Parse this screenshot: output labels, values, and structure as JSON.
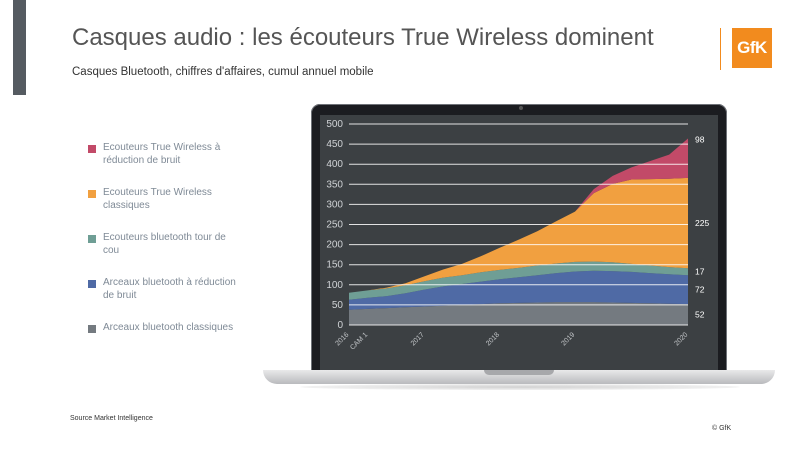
{
  "header": {
    "title": "Casques audio : les écouteurs True Wireless dominent",
    "subtitle": "Casques Bluetooth, chiffres d'affaires, cumul annuel mobile",
    "logo_text": "GfK"
  },
  "footer": {
    "source": "Source Market Intelligence",
    "copyright": "© GfK"
  },
  "colors": {
    "accent": "#f28b1e",
    "screen_bg": "#3c4043"
  },
  "chart_data": {
    "type": "area",
    "stacked": true,
    "title": "",
    "xlabel": "",
    "ylabel": "",
    "ylim": [
      0,
      500
    ],
    "yticks": [
      0,
      50,
      100,
      150,
      200,
      250,
      300,
      350,
      400,
      450,
      500
    ],
    "grid": true,
    "legend_position": "left",
    "x": [
      0,
      1,
      2,
      3,
      4,
      5,
      6,
      7,
      8,
      9,
      10,
      11,
      12,
      13,
      14,
      15,
      16,
      17,
      18
    ],
    "x_tick_labels": [
      {
        "x": 0,
        "label": "2016"
      },
      {
        "x": 1,
        "label": "CAM 1"
      },
      {
        "x": 4,
        "label": "2017"
      },
      {
        "x": 8,
        "label": "2018"
      },
      {
        "x": 12,
        "label": "2019"
      },
      {
        "x": 18,
        "label": "2020"
      }
    ],
    "series": [
      {
        "name": "Arceaux bluetooth classiques",
        "color": "#747a80",
        "values": [
          38,
          40,
          42,
          44,
          46,
          48,
          50,
          52,
          54,
          55,
          56,
          57,
          57,
          57,
          56,
          55,
          54,
          53,
          52
        ],
        "end_label": "52"
      },
      {
        "name": "Arceaux bluetooth à réduction de bruit",
        "color": "#4f6aa5",
        "values": [
          25,
          28,
          30,
          35,
          42,
          48,
          52,
          56,
          60,
          64,
          68,
          72,
          76,
          78,
          78,
          77,
          75,
          73,
          72
        ],
        "end_label": "72"
      },
      {
        "name": "Ecouteurs bluetooth tour de cou",
        "color": "#6f9e95",
        "values": [
          17,
          18,
          19,
          20,
          21,
          22,
          22,
          23,
          23,
          23,
          24,
          24,
          24,
          23,
          22,
          20,
          19,
          18,
          17
        ],
        "end_label": "17"
      },
      {
        "name": "Ecouteurs True Wireless classiques",
        "color": "#f1a040",
        "values": [
          0,
          0,
          2,
          5,
          12,
          20,
          28,
          40,
          55,
          70,
          85,
          105,
          125,
          170,
          195,
          210,
          215,
          220,
          225
        ],
        "end_label": "225"
      },
      {
        "name": "Ecouteurs True Wireless à réduction de bruit",
        "color": "#c24a68",
        "values": [
          0,
          0,
          0,
          0,
          0,
          0,
          0,
          0,
          0,
          0,
          0,
          0,
          0,
          10,
          20,
          30,
          45,
          60,
          98
        ],
        "end_label": "98"
      }
    ]
  }
}
